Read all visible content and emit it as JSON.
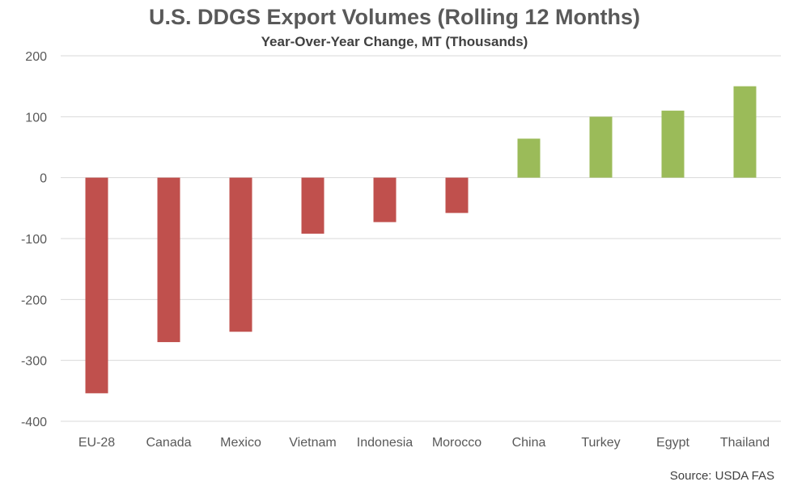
{
  "chart_data": {
    "type": "bar",
    "title": "U.S. DDGS Export Volumes (Rolling 12 Months)",
    "subtitle": "Year-Over-Year Change, MT (Thousands)",
    "categories": [
      "EU-28",
      "Canada",
      "Mexico",
      "Vietnam",
      "Indonesia",
      "Morocco",
      "China",
      "Turkey",
      "Egypt",
      "Thailand"
    ],
    "values": [
      -354,
      -270,
      -253,
      -92,
      -73,
      -58,
      64,
      100,
      110,
      150
    ],
    "ylim": [
      -400,
      200
    ],
    "yticks": [
      "200",
      "100",
      "0",
      "-100",
      "-200",
      "-300",
      "-400"
    ],
    "ytick_values": [
      200,
      100,
      0,
      -100,
      -200,
      -300,
      -400
    ],
    "xlabel": "",
    "ylabel": "",
    "grid": true,
    "colors": {
      "negative": "#c0504d",
      "positive": "#9bbb59",
      "grid": "#d9d9d9"
    }
  },
  "source_note": "Source: USDA FAS"
}
